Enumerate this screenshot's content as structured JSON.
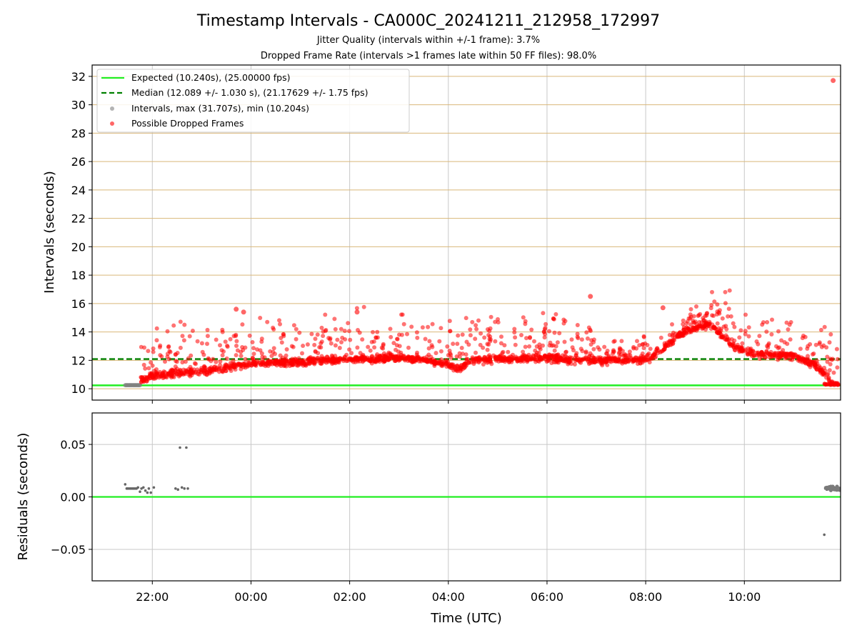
{
  "chart_data": {
    "type": "scatter",
    "title": "Timestamp Intervals - CA000C_20241211_212958_172997",
    "subtitle_1": "Jitter Quality (intervals within +/-1 frame): 3.7%",
    "subtitle_2": "Dropped Frame Rate (intervals >1 frames late within 50 FF files): 98.0%",
    "xlabel": "Time (UTC)",
    "x_ticks": [
      "22:00",
      "00:00",
      "02:00",
      "04:00",
      "06:00",
      "08:00",
      "10:00"
    ],
    "xlim_hours_from_2024_12_11_22_00": [
      -1.22,
      13.95
    ],
    "top_panel": {
      "ylabel": "Intervals (seconds)",
      "ylim": [
        9.2,
        32.8
      ],
      "y_ticks": [
        "10",
        "12",
        "14",
        "16",
        "18",
        "20",
        "22",
        "24",
        "26",
        "28",
        "30",
        "32"
      ],
      "grid": "horizontal lines tan, vertical lines gray",
      "expected_interval_s": 10.24,
      "median_interval_s": 12.089,
      "legend_position": "upper-left",
      "legend": [
        {
          "label": "Expected (10.240s), (25.00000 fps)",
          "color": "#22ee22",
          "style": "solid-line"
        },
        {
          "label": "Median (12.089 +/- 1.030 s), (21.17629 +/- 1.75 fps)",
          "color": "#008000",
          "style": "dashed-line"
        },
        {
          "label": "Intervals, max (31.707s), min (10.204s)",
          "color": "#808080",
          "style": "dot"
        },
        {
          "label": "Possible Dropped Frames",
          "color": "#ff0000",
          "style": "dot"
        }
      ],
      "series_trend_hours": [
        -0.55,
        -0.2,
        0.0,
        0.5,
        1.0,
        1.5,
        2.0,
        2.5,
        3.0,
        3.5,
        4.0,
        4.5,
        5.0,
        5.5,
        5.9,
        6.2,
        6.5,
        7.0,
        7.5,
        8.0,
        8.5,
        9.0,
        9.5,
        10.0,
        10.3,
        10.6,
        10.9,
        11.3,
        11.8,
        12.2,
        12.6,
        13.0,
        13.5,
        13.8
      ],
      "series_trend_seconds": [
        10.2,
        10.6,
        10.9,
        11.1,
        11.2,
        11.5,
        11.8,
        11.8,
        11.9,
        12.0,
        12.1,
        12.1,
        12.2,
        12.0,
        11.8,
        11.4,
        12.0,
        12.1,
        12.1,
        12.2,
        12.0,
        12.0,
        12.0,
        12.0,
        12.6,
        13.6,
        14.2,
        14.5,
        13.0,
        12.4,
        12.4,
        12.3,
        11.5,
        10.3
      ],
      "gray_intervals_hours_range": [
        -0.55,
        -0.25
      ],
      "gray_intervals_seconds": 10.25,
      "outliers": [
        {
          "x_hours": 13.8,
          "y_s": 31.707
        },
        {
          "x_hours": 8.88,
          "y_s": 16.5
        },
        {
          "x_hours": 1.7,
          "y_s": 15.6
        },
        {
          "x_hours": 1.85,
          "y_s": 15.4
        },
        {
          "x_hours": 4.15,
          "y_s": 15.4
        },
        {
          "x_hours": 10.35,
          "y_s": 15.7
        }
      ]
    },
    "bottom_panel": {
      "ylabel": "Residuals (seconds)",
      "ylim": [
        -0.08,
        0.08
      ],
      "y_ticks": [
        "0.05",
        "0.00",
        "−0.05"
      ],
      "zero_line_color": "#22ee22",
      "residual_points": [
        {
          "x": -0.55,
          "y": 0.012
        },
        {
          "x": -0.52,
          "y": 0.008
        },
        {
          "x": -0.5,
          "y": 0.008
        },
        {
          "x": -0.47,
          "y": 0.008
        },
        {
          "x": -0.44,
          "y": 0.008
        },
        {
          "x": -0.41,
          "y": 0.008
        },
        {
          "x": -0.38,
          "y": 0.008
        },
        {
          "x": -0.35,
          "y": 0.008
        },
        {
          "x": -0.32,
          "y": 0.008
        },
        {
          "x": -0.29,
          "y": 0.009
        },
        {
          "x": -0.25,
          "y": 0.005
        },
        {
          "x": -0.22,
          "y": 0.008
        },
        {
          "x": -0.18,
          "y": 0.009
        },
        {
          "x": -0.14,
          "y": 0.006
        },
        {
          "x": -0.1,
          "y": 0.004
        },
        {
          "x": -0.07,
          "y": 0.008
        },
        {
          "x": -0.03,
          "y": 0.004
        },
        {
          "x": 0.03,
          "y": 0.009
        },
        {
          "x": 0.47,
          "y": 0.008
        },
        {
          "x": 0.52,
          "y": 0.007
        },
        {
          "x": 0.56,
          "y": 0.047
        },
        {
          "x": 0.6,
          "y": 0.009
        },
        {
          "x": 0.65,
          "y": 0.008
        },
        {
          "x": 0.69,
          "y": 0.047
        },
        {
          "x": 0.72,
          "y": 0.008
        },
        {
          "x": 13.62,
          "y": -0.036
        },
        {
          "x": 13.64,
          "y": 0.008
        },
        {
          "x": 13.67,
          "y": 0.007
        },
        {
          "x": 13.7,
          "y": 0.008
        },
        {
          "x": 13.73,
          "y": 0.009
        },
        {
          "x": 13.76,
          "y": 0.007
        },
        {
          "x": 13.79,
          "y": 0.008
        },
        {
          "x": 13.82,
          "y": 0.009
        },
        {
          "x": 13.86,
          "y": 0.007
        },
        {
          "x": 13.9,
          "y": 0.008
        },
        {
          "x": 13.93,
          "y": 0.008
        }
      ]
    }
  },
  "colors": {
    "dropped": "#ff0000",
    "intervals": "#808080",
    "expected": "#22ee22",
    "median": "#008000",
    "hgrid_top": "#d9b779",
    "vgrid": "#c8c8c8"
  }
}
